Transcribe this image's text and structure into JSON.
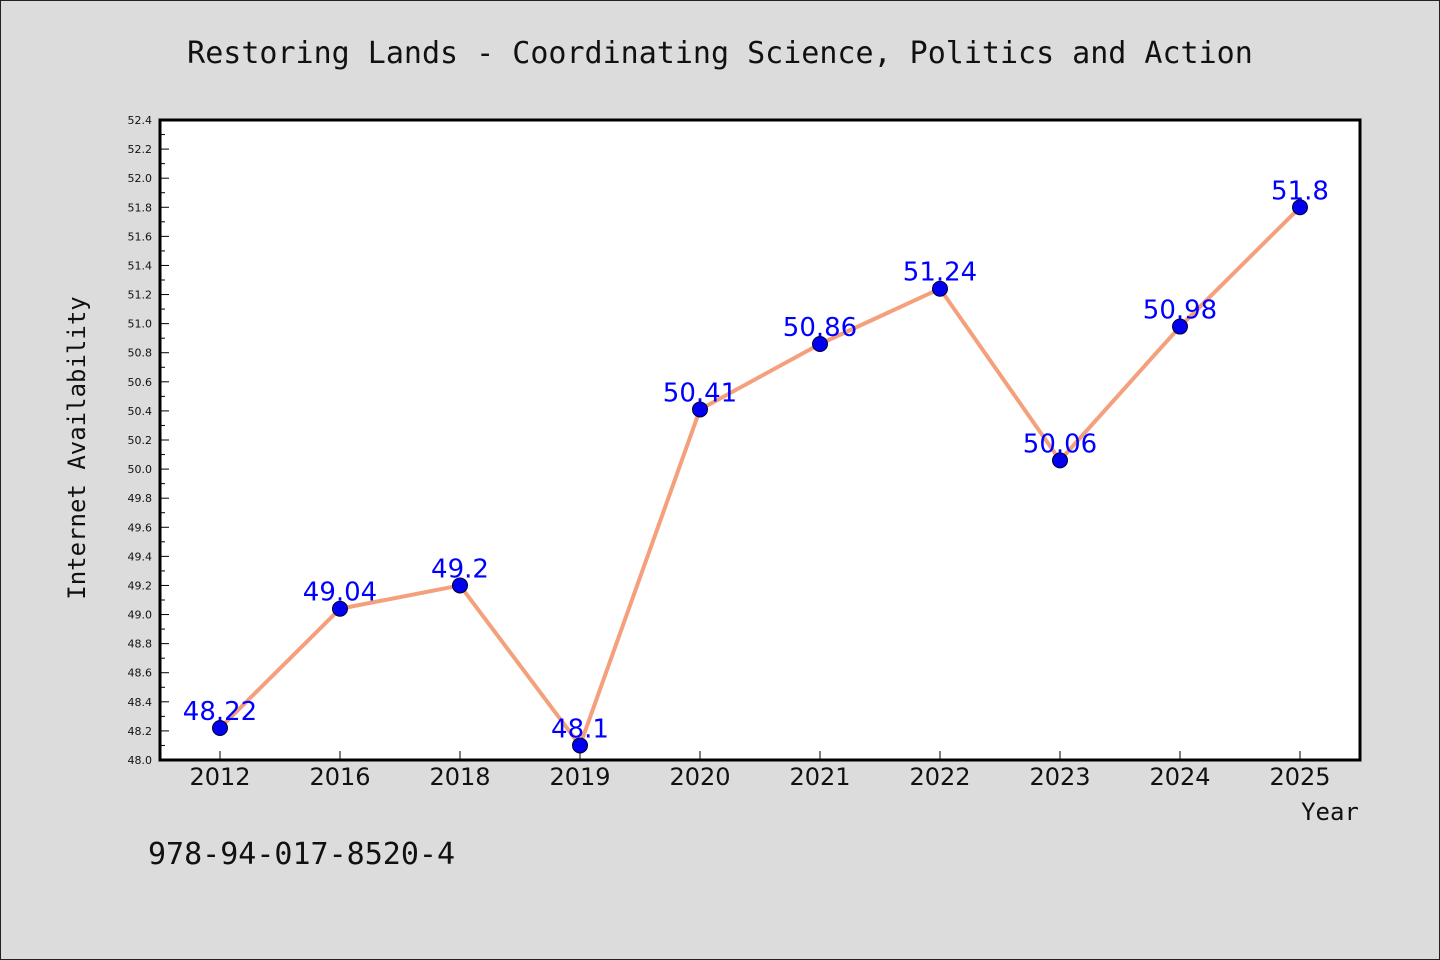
{
  "chart_data": {
    "type": "line",
    "title": "Restoring Lands - Coordinating Science, Politics and Action",
    "xlabel": "Year",
    "ylabel": "Internet Availability",
    "categories": [
      "2012",
      "2016",
      "2018",
      "2019",
      "2020",
      "2021",
      "2022",
      "2023",
      "2024",
      "2025"
    ],
    "values": [
      48.22,
      49.04,
      49.2,
      48.1,
      50.41,
      50.86,
      51.24,
      50.06,
      50.98,
      51.8
    ],
    "data_labels": [
      "48.22",
      "49.04",
      "49.2",
      "48.1",
      "50.41",
      "50.86",
      "51.24",
      "50.06",
      "50.98",
      "51.8"
    ],
    "ylim": [
      48.0,
      52.4
    ],
    "yticks": [
      "48.0",
      "48.2",
      "48.4",
      "48.6",
      "48.8",
      "49.0",
      "49.2",
      "49.4",
      "49.6",
      "49.8",
      "50.0",
      "50.2",
      "50.4",
      "50.6",
      "50.8",
      "51.0",
      "51.2",
      "51.4",
      "51.6",
      "51.8",
      "52.0",
      "52.2",
      "52.4"
    ],
    "grid": false,
    "line_color": "#f4a07c",
    "marker_color": "#0000ee",
    "label_color": "#0000ff",
    "background_color": "#dcdcdc",
    "plot_background": "#ffffff"
  },
  "footnote": "978-94-017-8520-4"
}
